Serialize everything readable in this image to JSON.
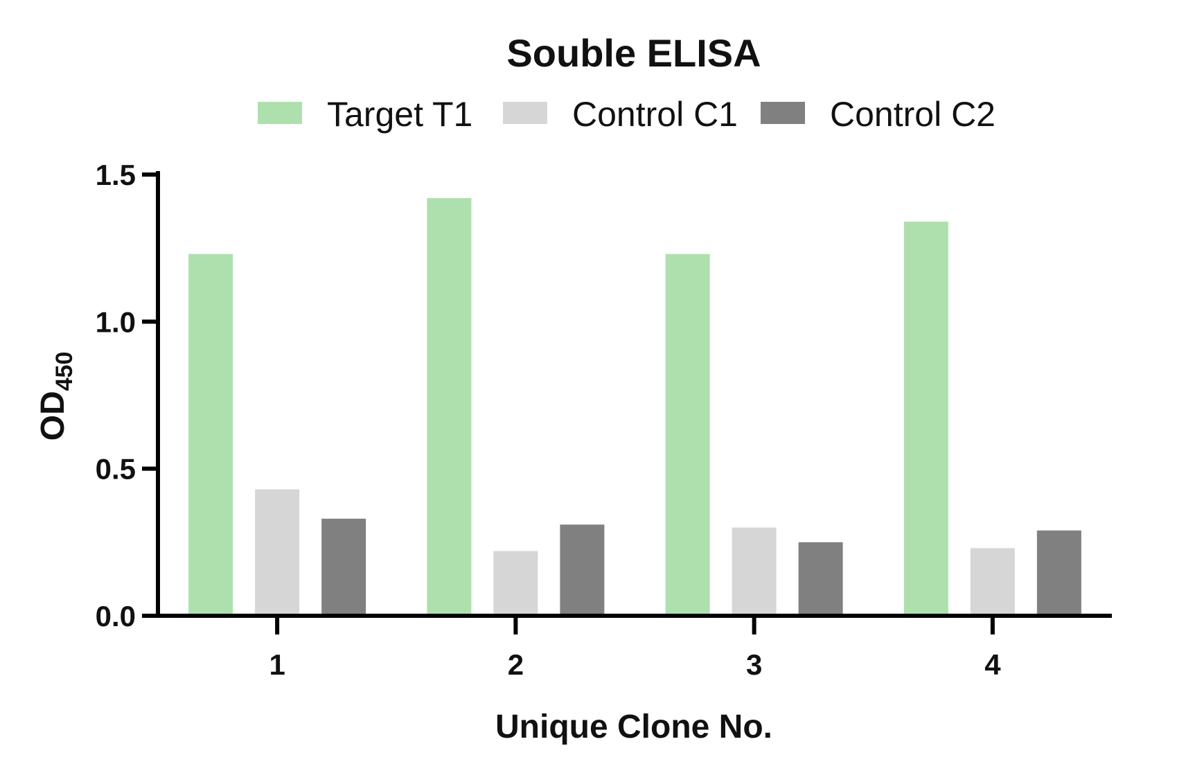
{
  "chart_data": {
    "type": "bar",
    "title": "Souble ELISA",
    "xlabel": "Unique Clone No.",
    "ylabel": "OD",
    "ylabel_subscript": "450",
    "categories": [
      "1",
      "2",
      "3",
      "4"
    ],
    "series": [
      {
        "name": "Target T1",
        "color": "#aee0ae",
        "values": [
          1.23,
          1.42,
          1.23,
          1.34
        ]
      },
      {
        "name": "Control C1",
        "color": "#d6d6d6",
        "values": [
          0.43,
          0.22,
          0.3,
          0.23
        ]
      },
      {
        "name": "Control C2",
        "color": "#808080",
        "values": [
          0.33,
          0.31,
          0.25,
          0.29
        ]
      }
    ],
    "ylim": [
      0,
      1.5
    ],
    "yticks": [
      "0.0",
      "0.5",
      "1.0",
      "1.5"
    ],
    "grid": false,
    "legend": "top"
  }
}
